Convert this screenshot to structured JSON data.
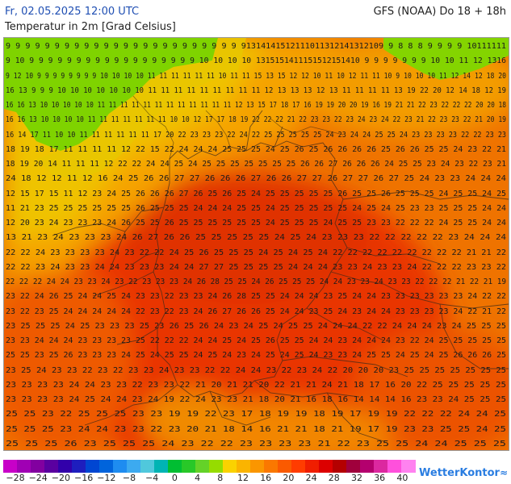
{
  "header": {
    "date_line": "Fr, 02.05.2025 12:00 UTC",
    "model_line": "GFS (NOAA) Do 18 + 18h",
    "parameter_line": "Temperatur in 2m [Grad Celsius]"
  },
  "legend": {
    "labels": [
      "−28",
      "−24",
      "−20",
      "−16",
      "−12",
      "−8",
      "−4",
      "0",
      "4",
      "8",
      "12",
      "16",
      "20",
      "24",
      "28",
      "32",
      "36",
      "40"
    ],
    "colors": [
      "#c800c8",
      "#a000b4",
      "#8200a0",
      "#5a00a0",
      "#3200aa",
      "#1e1ebe",
      "#0046d2",
      "#0064dc",
      "#1e8cf0",
      "#3caaf0",
      "#50c8dc",
      "#00b4b4",
      "#00be32",
      "#28c828",
      "#64d228",
      "#96dc00",
      "#fad200",
      "#fab400",
      "#fa9600",
      "#fa7800",
      "#fa5a00",
      "#ff3c00",
      "#f01e00",
      "#dc0000",
      "#b40000",
      "#a0003c",
      "#b4006e",
      "#dc28a0",
      "#ff50dc",
      "#ff82f0"
    ],
    "scheme_colors": {
      "cold": "#78dc00",
      "cool": "#e6c800",
      "mild": "#f7a600",
      "warm": "#f07b00",
      "hot": "#ed4d00",
      "hotter": "#e42d00"
    }
  },
  "brand": {
    "name": "WetterKontor",
    "icon": "wind-swoosh-icon"
  },
  "map_grid": [
    "9 9 9 9 9 9 9 9 9 9 9 9 9 9 9 9 9 9 9 9 9 9 9 9 91314141512111011312141312109 9 8 8 8 9 9 9 9 10111111",
    "9 10 9 9 9 9 9 9 9 9 9 9 9 9 9 9 9 9 9 9 10 10 10 10 1315151411151512151410 9 9 9 9 9 9 9 10 10 11 12 1316",
    "9 12 10 9 9 9 9 9 9 9 9 10 10 10 10 11 11 11 11 11 11 10 11 11 15 13 15 12 12 10 11 10 12 11 11 10 9 10 10 10 11 12 14 12 18 20",
    "16 13 9 9 9 10 10 10 10 10 10 10 11 11 11 11 11 11 11 11 11 12 13 13 13 12 13 11 11 11 11 13 19 22 20 12 14 18 12 19",
    "16 16 13 10 10 10 10 10 11 11 11 11 11 11 11 11 11 11 11 11 12 13 15 17 18 17 16 19 19 20 20 19 16 19 21 21 22 23 22 22 22 20 20 18",
    "16 16 13 10 10 10 10 11 11 11 11 11 11 11 10 10 12 17 17 18 19 22 22 22 21 22 23 23 22 23 24 23 24 22 23 21 22 23 23 22 21 20 19",
    "16 14 17 11 10 10 11 11 11 11 11 11 17 20 22 23 23 23 22 24 22 25 25 25 25 25 24 23 24 24 25 25 24 23 23 23 23 22 22 23 23",
    "18 19 18 17 11 11 11 11 12 22 15 22 24 24 24 25 25 25 24 25 26 25 26 26 26 26 25 26 26 25 25 24 23 22 21",
    "18 19 20 14 11 11 11 12 22 22 24 24 25 24 25 25 25 25 25 25 25 26 26 27 26 26 26 24 25 25 23 24 23 22 23 21",
    "24 18 12 12 11 12 16 24 25 26 26 27 27 26 26 26 27 26 26 27 27 26 27 27 26 27 25 24 23 23 24 24 24",
    "12 15 17 15 11 12 23 24 25 26 26 26 27 26 25 26 25 24 25 25 25 25 25 26 25 25 26 25 25 25 24 25 25 24 25",
    "11 21 23 25 25 25 25 25 25 26 25 25 25 24 24 24 25 25 24 25 25 25 25 25 24 25 24 25 23 23 25 25 25 24 24",
    "12 20 23 24 23 23 23 24 26 25 25 26 25 25 25 25 25 25 24 25 25 25 24 25 25 23 23 22 22 22 24 25 25 24 24",
    "13 21 23 24 23 23 23 24 26 27 26 26 25 25 25 25 25 24 25 24 23 23 23 22 22 22 22 22 23 24 24 24",
    "22 22 24 23 23 23 23 24 23 22 22 24 25 26 25 25 25 24 25 24 25 24 22 22 22 22 22 22 22 22 22 21 21 22",
    "22 22 23 24 23 23 24 24 23 23 23 24 24 27 27 25 25 25 25 24 24 24 23 23 24 23 23 24 22 22 22 23 23 22",
    "22 22 22 24 24 23 23 24 23 22 23 23 23 24 26 28 25 25 24 26 25 25 25 24 24 23 23 24 23 23 22 22 22 21 22 21 19",
    "23 22 24 26 25 24 24 25 24 23 23 22 23 23 24 26 28 25 25 24 24 24 23 25 24 24 23 23 23 23 23 23 24 22 22",
    "23 22 23 25 24 24 24 24 24 22 23 22 23 24 26 27 26 26 25 24 24 23 25 24 23 24 24 23 23 23 23 24 22 21 22",
    "23 25 25 25 24 25 23 23 23 25 23 26 25 26 24 23 24 25 24 25 25 24 24 24 22 22 24 24 24 23 24 25 25 25",
    "23 23 24 24 24 23 23 23 23 25 22 22 22 24 24 25 24 25 26 25 25 24 24 23 24 24 24 23 22 24 25 25 25 25 25",
    "25 25 23 25 26 23 23 23 24 25 24 25 25 24 25 24 23 24 25 24 25 24 23 23 24 25 25 24 25 24 25 26 26 26 25",
    "23 25 24 23 23 22 23 22 23 23 24 23 23 22 22 24 24 23 22 23 24 22 20 20 20 23 25 25 25 25 25 25 25",
    "23 23 23 23 24 24 23 23 22 23 23 22 21 20 21 21 20 22 21 21 24 21 18 17 16 20 22 25 25 25 25 25",
    "23 23 23 23 24 25 24 24 23 24 19 22 24 23 23 21 18 20 21 16 18 16 14 14 14 16 23 23 24 25 25 25",
    "25 25 23 22 25 25 25 23 23 19 19 22 23 17 18 19 19 18 19 17 19 19 22 22 22 24 24 25",
    "25 25 25 23 24 24 23 23 22 23 20 21 18 14 16 21 21 18 21 19 17 19 23 23 25 25 24 25",
    "25 25 25 26 23 25 25 25 24 23 22 22 23 23 23 23 21 22 23 25 25 24 24 25 25 25"
  ]
}
